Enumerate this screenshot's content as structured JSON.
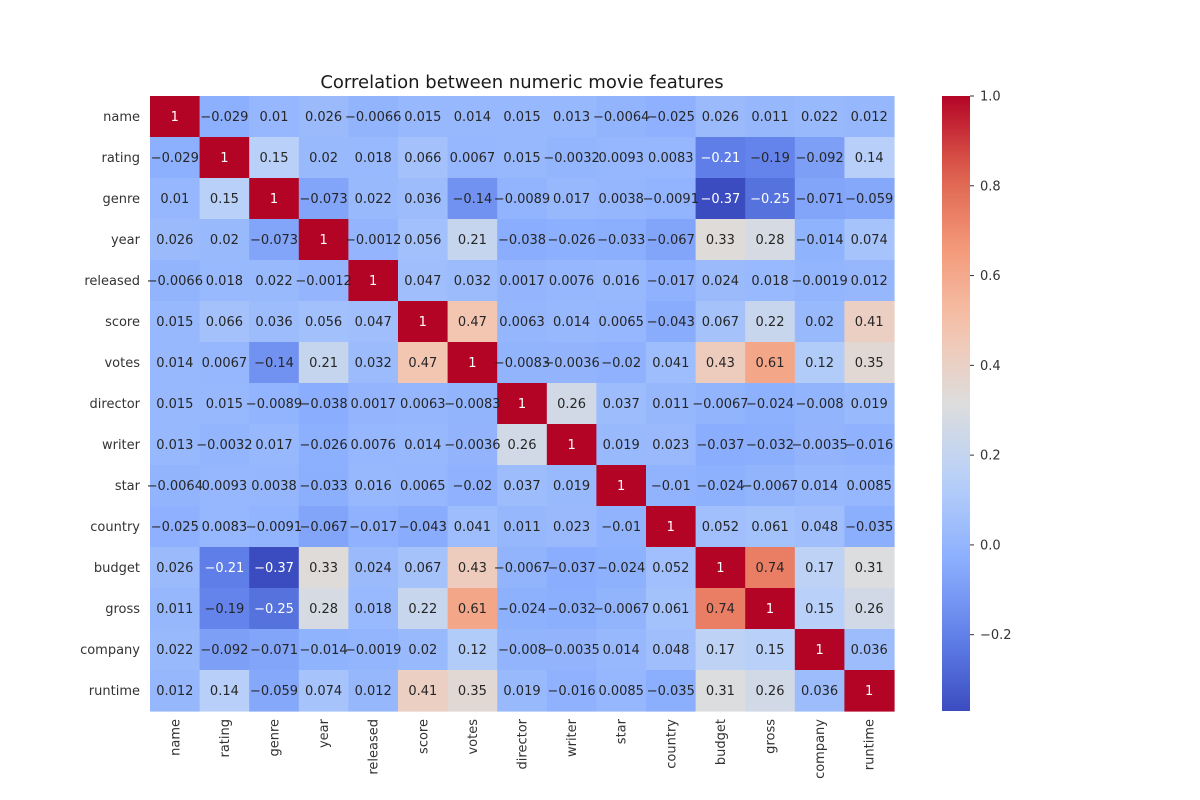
{
  "chart_data": {
    "type": "heatmap",
    "title": "Correlation between numeric movie features",
    "labels": [
      "name",
      "rating",
      "genre",
      "year",
      "released",
      "score",
      "votes",
      "director",
      "writer",
      "star",
      "country",
      "budget",
      "gross",
      "company",
      "runtime"
    ],
    "matrix": [
      [
        1,
        -0.029,
        0.01,
        0.026,
        -0.0066,
        0.015,
        0.014,
        0.015,
        0.013,
        -0.0064,
        -0.025,
        0.026,
        0.011,
        0.022,
        0.012
      ],
      [
        -0.029,
        1,
        0.15,
        0.02,
        0.018,
        0.066,
        0.0067,
        0.015,
        -0.0032,
        0.0093,
        0.0083,
        -0.21,
        -0.19,
        -0.092,
        0.14
      ],
      [
        0.01,
        0.15,
        1,
        -0.073,
        0.022,
        0.036,
        -0.14,
        -0.0089,
        0.017,
        0.0038,
        -0.0091,
        -0.37,
        -0.25,
        -0.071,
        -0.059
      ],
      [
        0.026,
        0.02,
        -0.073,
        1,
        -0.0012,
        0.056,
        0.21,
        -0.038,
        -0.026,
        -0.033,
        -0.067,
        0.33,
        0.28,
        -0.014,
        0.074
      ],
      [
        -0.0066,
        0.018,
        0.022,
        -0.0012,
        1,
        0.047,
        0.032,
        0.0017,
        0.0076,
        0.016,
        -0.017,
        0.024,
        0.018,
        -0.0019,
        0.012
      ],
      [
        0.015,
        0.066,
        0.036,
        0.056,
        0.047,
        1,
        0.47,
        0.0063,
        0.014,
        0.0065,
        -0.043,
        0.067,
        0.22,
        0.02,
        0.41
      ],
      [
        0.014,
        0.0067,
        -0.14,
        0.21,
        0.032,
        0.47,
        1,
        -0.0083,
        -0.0036,
        -0.02,
        0.041,
        0.43,
        0.61,
        0.12,
        0.35
      ],
      [
        0.015,
        0.015,
        -0.0089,
        -0.038,
        0.0017,
        0.0063,
        -0.0083,
        1,
        0.26,
        0.037,
        0.011,
        -0.0067,
        -0.024,
        -0.008,
        0.019
      ],
      [
        0.013,
        -0.0032,
        0.017,
        -0.026,
        0.0076,
        0.014,
        -0.0036,
        0.26,
        1,
        0.019,
        0.023,
        -0.037,
        -0.032,
        -0.0035,
        -0.016
      ],
      [
        -0.0064,
        0.0093,
        0.0038,
        -0.033,
        0.016,
        0.0065,
        -0.02,
        0.037,
        0.019,
        1,
        -0.01,
        -0.024,
        -0.0067,
        0.014,
        0.0085
      ],
      [
        -0.025,
        0.0083,
        -0.0091,
        -0.067,
        -0.017,
        -0.043,
        0.041,
        0.011,
        0.023,
        -0.01,
        1,
        0.052,
        0.061,
        0.048,
        -0.035
      ],
      [
        0.026,
        -0.21,
        -0.37,
        0.33,
        0.024,
        0.067,
        0.43,
        -0.0067,
        -0.037,
        -0.024,
        0.052,
        1,
        0.74,
        0.17,
        0.31
      ],
      [
        0.011,
        -0.19,
        -0.25,
        0.28,
        0.018,
        0.22,
        0.61,
        -0.024,
        -0.032,
        -0.0067,
        0.061,
        0.74,
        1,
        0.15,
        0.26
      ],
      [
        0.022,
        -0.092,
        -0.071,
        -0.014,
        -0.0019,
        0.02,
        0.12,
        -0.008,
        -0.0035,
        0.014,
        0.048,
        0.17,
        0.15,
        1,
        0.036
      ],
      [
        0.012,
        0.14,
        -0.059,
        0.074,
        0.012,
        0.41,
        0.35,
        0.019,
        -0.016,
        0.0085,
        -0.035,
        0.31,
        0.26,
        0.036,
        1
      ]
    ],
    "vmin": -0.37,
    "vmax": 1,
    "colormap": "coolwarm",
    "colorbar_ticks": [
      1.0,
      0.8,
      0.6,
      0.4,
      0.2,
      0.0,
      -0.2
    ],
    "colorbar_tick_labels": [
      "1.0",
      "0.8",
      "0.6",
      "0.4",
      "0.2",
      "0.0",
      "−0.2"
    ],
    "annotated": true,
    "grid": false,
    "legend": "colorbar-right"
  }
}
